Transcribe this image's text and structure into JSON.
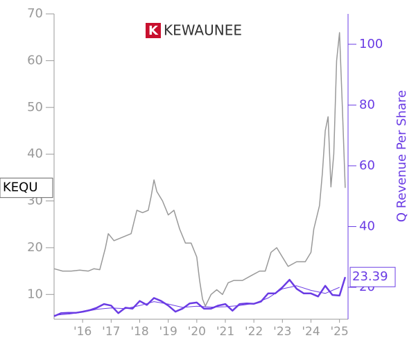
{
  "chart_data": {
    "type": "line",
    "title": "KEWAUNEE",
    "y2label": "Q Revenue Per Share",
    "xlim": [
      2015,
      2025.3
    ],
    "xticks": [
      {
        "value": 2016,
        "label": "'16"
      },
      {
        "value": 2017,
        "label": "'17"
      },
      {
        "value": 2018,
        "label": "'18"
      },
      {
        "value": 2019,
        "label": "'19"
      },
      {
        "value": 2020,
        "label": "'20"
      },
      {
        "value": 2021,
        "label": "'21"
      },
      {
        "value": 2022,
        "label": "'22"
      },
      {
        "value": 2023,
        "label": "'23"
      },
      {
        "value": 2024,
        "label": "'24"
      },
      {
        "value": 2025,
        "label": "'25"
      }
    ],
    "ylim": [
      4.7,
      70
    ],
    "yticks": [
      10,
      20,
      30,
      40,
      50,
      60,
      70
    ],
    "y2lim": [
      9.5,
      110
    ],
    "y2ticks": [
      20,
      40,
      60,
      80,
      100
    ],
    "series": [
      {
        "name": "KEQU",
        "color": "#999999",
        "axis": "y",
        "width": 1.5,
        "x": [
          2015.0,
          2015.3,
          2015.6,
          2015.9,
          2016.2,
          2016.4,
          2016.6,
          2016.8,
          2016.9,
          2017.1,
          2017.3,
          2017.5,
          2017.7,
          2017.9,
          2018.1,
          2018.3,
          2018.4,
          2018.5,
          2018.6,
          2018.8,
          2019.0,
          2019.2,
          2019.4,
          2019.6,
          2019.8,
          2020.0,
          2020.1,
          2020.2,
          2020.3,
          2020.5,
          2020.7,
          2020.9,
          2021.1,
          2021.3,
          2021.6,
          2021.9,
          2022.2,
          2022.4,
          2022.6,
          2022.8,
          2023.0,
          2023.2,
          2023.5,
          2023.8,
          2024.0,
          2024.1,
          2024.3,
          2024.4,
          2024.5,
          2024.6,
          2024.7,
          2024.8,
          2024.9,
          2025.0,
          2025.1,
          2025.2
        ],
        "values": [
          15.5,
          15,
          15,
          15.2,
          15,
          15.5,
          15.3,
          20,
          23,
          21.5,
          22,
          22.5,
          23,
          28,
          27.5,
          28,
          31,
          34.5,
          32,
          30,
          27,
          28,
          24,
          21,
          21,
          18,
          13,
          9,
          7.5,
          10,
          11,
          10,
          12.5,
          13,
          13,
          14,
          15,
          15,
          19,
          20,
          18,
          16,
          17,
          17,
          19,
          24,
          29,
          36,
          45,
          48,
          33,
          40,
          60,
          66,
          50,
          32.8
        ]
      },
      {
        "color": "#6a3be4",
        "axis": "y2",
        "width": 1,
        "x": [
          2015.0,
          2015.5,
          2016.0,
          2016.5,
          2017.0,
          2017.5,
          2018.0,
          2018.5,
          2019.0,
          2019.5,
          2020.0,
          2020.5,
          2021.0,
          2021.5,
          2022.0,
          2022.5,
          2023.0,
          2023.5,
          2024.0,
          2024.5,
          2025.0
        ],
        "values": [
          10.8,
          11.2,
          11.8,
          12.8,
          13.2,
          13,
          14,
          15.3,
          14.5,
          13.4,
          13.8,
          13.5,
          13.6,
          14,
          14.7,
          16.5,
          19.5,
          20.5,
          19,
          18,
          20
        ]
      },
      {
        "color": "#6a3be4",
        "axis": "y2",
        "width": 2.5,
        "x": [
          2015.0,
          2015.25,
          2015.5,
          2015.75,
          2016.0,
          2016.25,
          2016.5,
          2016.75,
          2017.0,
          2017.25,
          2017.5,
          2017.75,
          2018.0,
          2018.25,
          2018.5,
          2018.75,
          2019.0,
          2019.25,
          2019.5,
          2019.75,
          2020.0,
          2020.25,
          2020.5,
          2020.75,
          2021.0,
          2021.25,
          2021.5,
          2021.75,
          2022.0,
          2022.25,
          2022.5,
          2022.75,
          2023.0,
          2023.25,
          2023.5,
          2023.75,
          2024.0,
          2024.25,
          2024.5,
          2024.75,
          2025.0,
          2025.2
        ],
        "values": [
          10.5,
          11.5,
          11.6,
          11.6,
          12,
          12.5,
          13.3,
          14.5,
          14,
          11.5,
          13.3,
          13,
          15.5,
          14.2,
          16.5,
          15.5,
          14,
          12,
          13,
          14.7,
          15,
          13,
          13,
          14,
          14.5,
          12.3,
          14.5,
          14.7,
          14.6,
          15.3,
          18,
          18,
          20,
          22.5,
          19.5,
          18,
          18,
          17,
          20.5,
          17.5,
          17.3,
          23.39
        ],
        "value_labels": [
          null,
          null,
          null,
          null,
          null,
          null,
          null,
          null,
          null,
          null,
          null,
          null,
          null,
          null,
          null,
          null,
          null,
          null,
          null,
          null,
          null,
          null,
          null,
          null,
          null,
          null,
          null,
          null,
          null,
          null,
          null,
          null,
          null,
          null,
          null,
          null,
          null,
          null,
          null,
          null,
          null,
          "23.39"
        ]
      }
    ]
  }
}
